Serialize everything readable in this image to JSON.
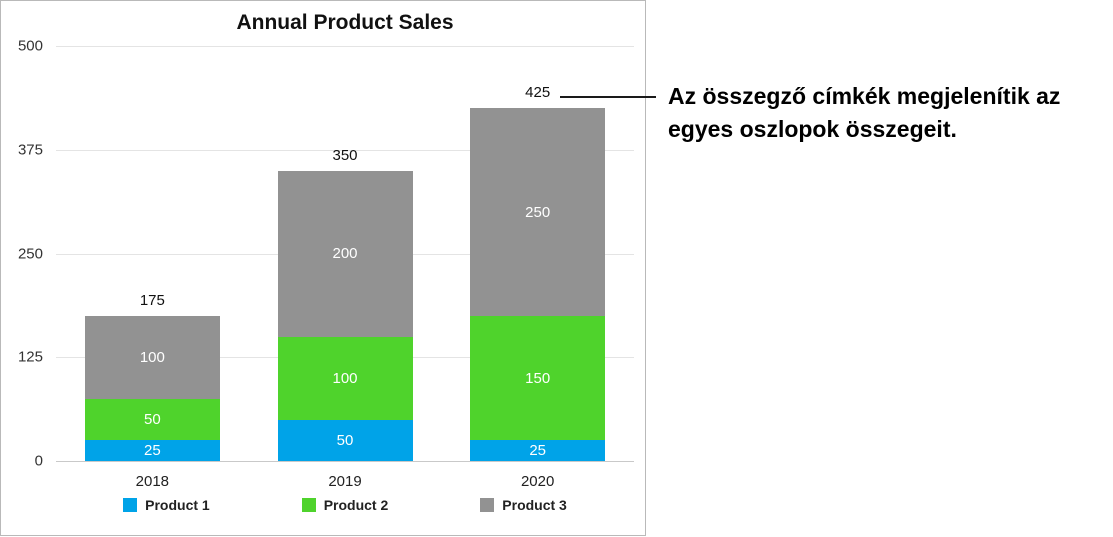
{
  "title": "Annual Product Sales",
  "callout": {
    "text": "Az összegző címkék megjelenítik az egyes oszlopok összegeit."
  },
  "chart_data": {
    "type": "bar",
    "stacked": true,
    "title": "Annual Product Sales",
    "categories": [
      "2018",
      "2019",
      "2020"
    ],
    "series": [
      {
        "name": "Product 1",
        "color": "#00a3e8",
        "values": [
          25,
          50,
          25
        ]
      },
      {
        "name": "Product 2",
        "color": "#4fd32c",
        "values": [
          50,
          100,
          150
        ]
      },
      {
        "name": "Product 3",
        "color": "#929292",
        "values": [
          100,
          200,
          250
        ]
      }
    ],
    "totals": [
      175,
      350,
      425
    ],
    "ylim": [
      0,
      500
    ],
    "yticks": [
      0,
      125,
      250,
      375,
      500
    ],
    "grid": true,
    "legend_position": "bottom"
  }
}
